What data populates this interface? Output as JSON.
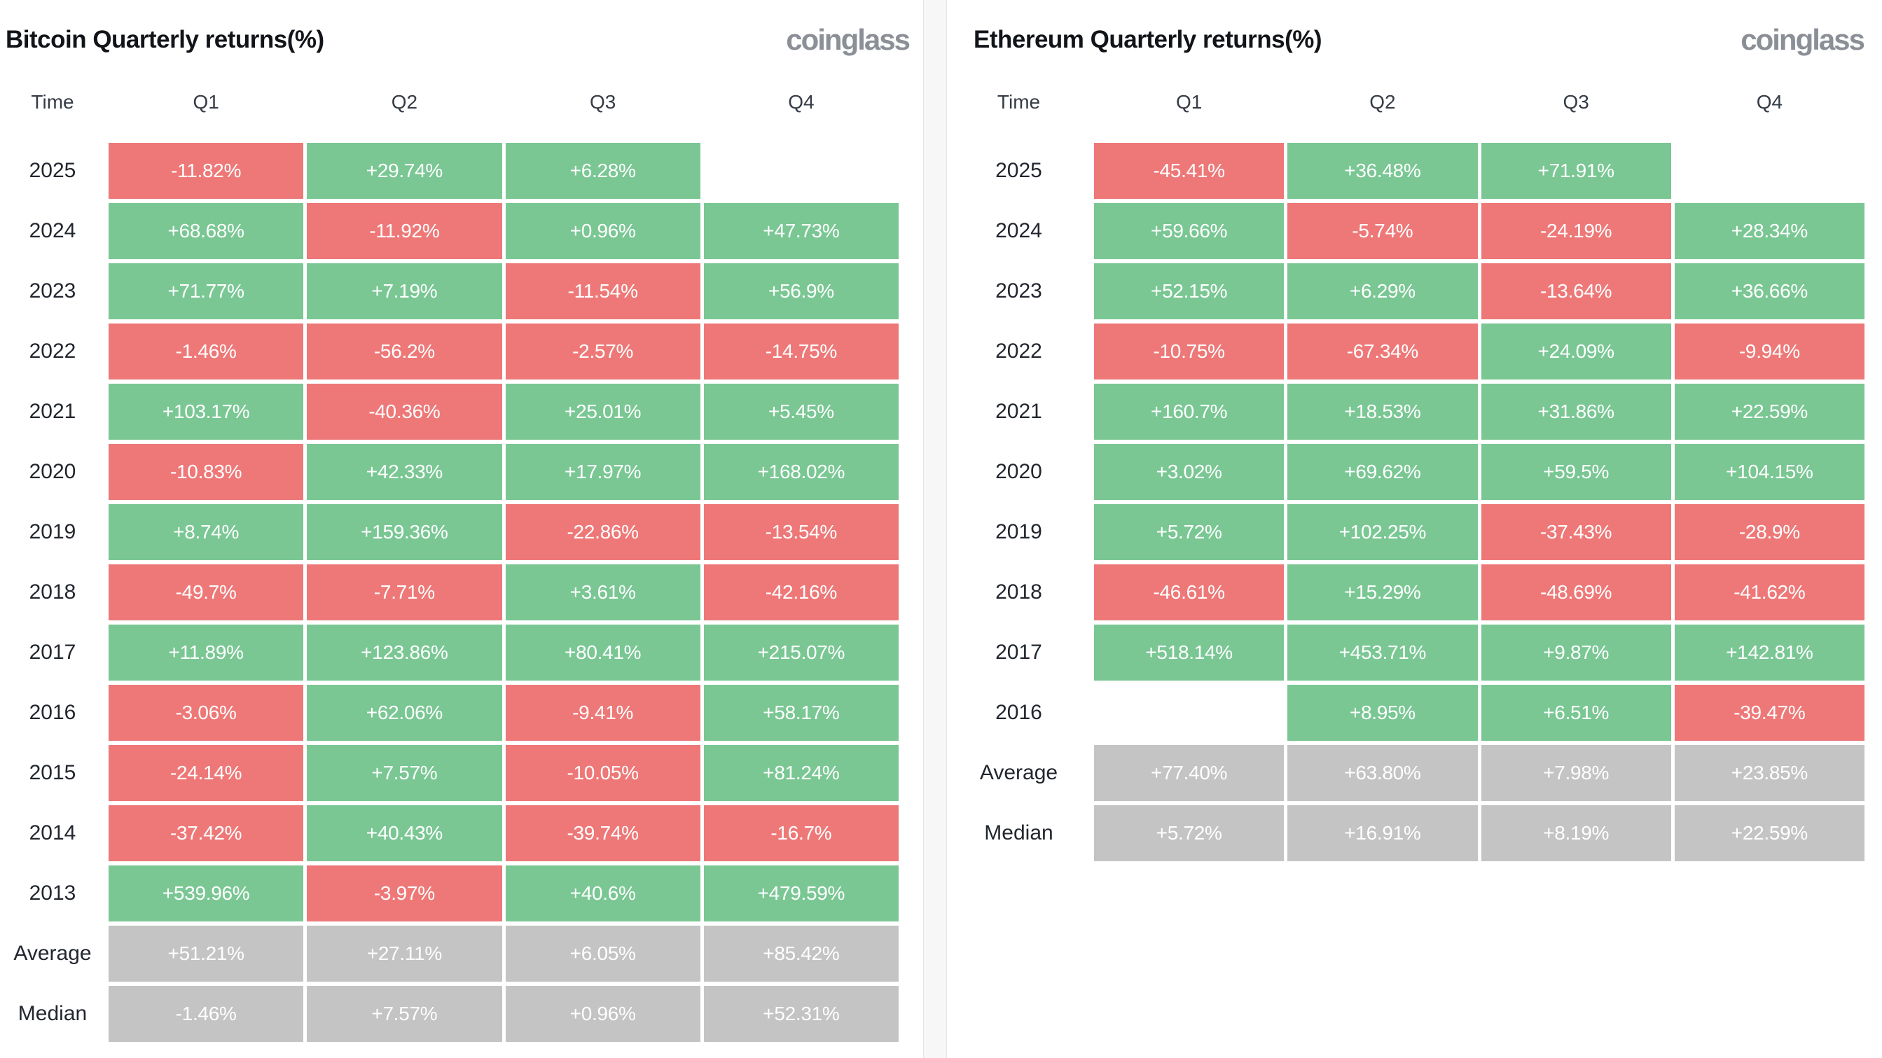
{
  "colors": {
    "positive": "#7ac794",
    "negative": "#ee7878",
    "summary": "#c4c4c4",
    "logo_gray": "#8b8f96"
  },
  "chart_data": [
    {
      "type": "table",
      "title": "Bitcoin Quarterly returns(%)",
      "logo": "coinglass",
      "columns": [
        "Time",
        "Q1",
        "Q2",
        "Q3",
        "Q4"
      ],
      "legend": "green = positive return, red = negative return, gray = summary rows",
      "rows": [
        {
          "label": "2025",
          "values": [
            "-11.82%",
            "+29.74%",
            "+6.28%",
            ""
          ]
        },
        {
          "label": "2024",
          "values": [
            "+68.68%",
            "-11.92%",
            "+0.96%",
            "+47.73%"
          ]
        },
        {
          "label": "2023",
          "values": [
            "+71.77%",
            "+7.19%",
            "-11.54%",
            "+56.9%"
          ]
        },
        {
          "label": "2022",
          "values": [
            "-1.46%",
            "-56.2%",
            "-2.57%",
            "-14.75%"
          ]
        },
        {
          "label": "2021",
          "values": [
            "+103.17%",
            "-40.36%",
            "+25.01%",
            "+5.45%"
          ]
        },
        {
          "label": "2020",
          "values": [
            "-10.83%",
            "+42.33%",
            "+17.97%",
            "+168.02%"
          ]
        },
        {
          "label": "2019",
          "values": [
            "+8.74%",
            "+159.36%",
            "-22.86%",
            "-13.54%"
          ]
        },
        {
          "label": "2018",
          "values": [
            "-49.7%",
            "-7.71%",
            "+3.61%",
            "-42.16%"
          ]
        },
        {
          "label": "2017",
          "values": [
            "+11.89%",
            "+123.86%",
            "+80.41%",
            "+215.07%"
          ]
        },
        {
          "label": "2016",
          "values": [
            "-3.06%",
            "+62.06%",
            "-9.41%",
            "+58.17%"
          ]
        },
        {
          "label": "2015",
          "values": [
            "-24.14%",
            "+7.57%",
            "-10.05%",
            "+81.24%"
          ]
        },
        {
          "label": "2014",
          "values": [
            "-37.42%",
            "+40.43%",
            "-39.74%",
            "-16.7%"
          ]
        },
        {
          "label": "2013",
          "values": [
            "+539.96%",
            "-3.97%",
            "+40.6%",
            "+479.59%"
          ]
        },
        {
          "label": "Average",
          "summary": true,
          "values": [
            "+51.21%",
            "+27.11%",
            "+6.05%",
            "+85.42%"
          ]
        },
        {
          "label": "Median",
          "summary": true,
          "values": [
            "-1.46%",
            "+7.57%",
            "+0.96%",
            "+52.31%"
          ]
        }
      ]
    },
    {
      "type": "table",
      "title": "Ethereum Quarterly returns(%)",
      "logo": "coinglass",
      "columns": [
        "Time",
        "Q1",
        "Q2",
        "Q3",
        "Q4"
      ],
      "legend": "green = positive return, red = negative return, gray = summary rows",
      "rows": [
        {
          "label": "2025",
          "values": [
            "-45.41%",
            "+36.48%",
            "+71.91%",
            ""
          ]
        },
        {
          "label": "2024",
          "values": [
            "+59.66%",
            "-5.74%",
            "-24.19%",
            "+28.34%"
          ]
        },
        {
          "label": "2023",
          "values": [
            "+52.15%",
            "+6.29%",
            "-13.64%",
            "+36.66%"
          ]
        },
        {
          "label": "2022",
          "values": [
            "-10.75%",
            "-67.34%",
            "+24.09%",
            "-9.94%"
          ]
        },
        {
          "label": "2021",
          "values": [
            "+160.7%",
            "+18.53%",
            "+31.86%",
            "+22.59%"
          ]
        },
        {
          "label": "2020",
          "values": [
            "+3.02%",
            "+69.62%",
            "+59.5%",
            "+104.15%"
          ]
        },
        {
          "label": "2019",
          "values": [
            "+5.72%",
            "+102.25%",
            "-37.43%",
            "-28.9%"
          ]
        },
        {
          "label": "2018",
          "values": [
            "-46.61%",
            "+15.29%",
            "-48.69%",
            "-41.62%"
          ]
        },
        {
          "label": "2017",
          "values": [
            "+518.14%",
            "+453.71%",
            "+9.87%",
            "+142.81%"
          ]
        },
        {
          "label": "2016",
          "values": [
            "",
            "+8.95%",
            "+6.51%",
            "-39.47%"
          ]
        },
        {
          "label": "Average",
          "summary": true,
          "values": [
            "+77.40%",
            "+63.80%",
            "+7.98%",
            "+23.85%"
          ]
        },
        {
          "label": "Median",
          "summary": true,
          "values": [
            "+5.72%",
            "+16.91%",
            "+8.19%",
            "+22.59%"
          ]
        }
      ]
    }
  ]
}
